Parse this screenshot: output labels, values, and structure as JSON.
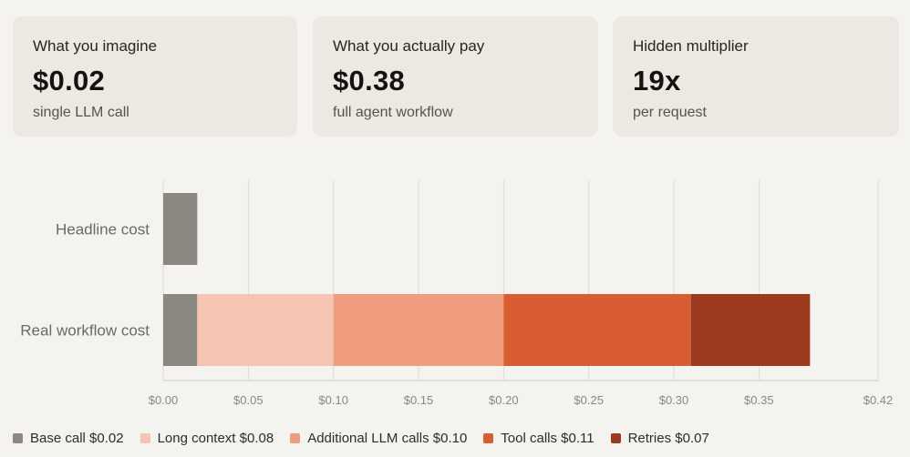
{
  "cards": [
    {
      "label": "What you imagine",
      "value": "$0.02",
      "sub": "single LLM call"
    },
    {
      "label": "What you actually pay",
      "value": "$0.38",
      "sub": "full agent workflow"
    },
    {
      "label": "Hidden multiplier",
      "value": "19x",
      "sub": "per request"
    }
  ],
  "legend": [
    {
      "label": "Base call $0.02",
      "color": "#8a8880"
    },
    {
      "label": "Long context $0.08",
      "color": "#f5c4b2"
    },
    {
      "label": "Additional LLM calls $0.10",
      "color": "#f09c7e"
    },
    {
      "label": "Tool calls $0.11",
      "color": "#d95d33"
    },
    {
      "label": "Retries $0.07",
      "color": "#9b3a1f"
    }
  ],
  "chart_data": {
    "type": "bar",
    "orientation": "horizontal",
    "stacked": true,
    "categories": [
      "Headline cost",
      "Real workflow cost"
    ],
    "series": [
      {
        "name": "Base call",
        "color": "#8a8880",
        "values": [
          0.02,
          0.02
        ]
      },
      {
        "name": "Long context",
        "color": "#f5c4b2",
        "values": [
          0,
          0.08
        ]
      },
      {
        "name": "Additional LLM calls",
        "color": "#f09c7e",
        "values": [
          0,
          0.1
        ]
      },
      {
        "name": "Tool calls",
        "color": "#d95d33",
        "values": [
          0,
          0.11
        ]
      },
      {
        "name": "Retries",
        "color": "#9b3a1f",
        "values": [
          0,
          0.07
        ]
      }
    ],
    "xlim": [
      0,
      0.42
    ],
    "xticks": [
      0,
      0.05,
      0.1,
      0.15,
      0.2,
      0.25,
      0.3,
      0.35,
      0.42
    ],
    "xtick_labels": [
      "$0.00",
      "$0.05",
      "$0.10",
      "$0.15",
      "$0.20",
      "$0.25",
      "$0.30",
      "$0.35",
      "$0.42"
    ],
    "grid": true,
    "legend_position": "bottom"
  }
}
